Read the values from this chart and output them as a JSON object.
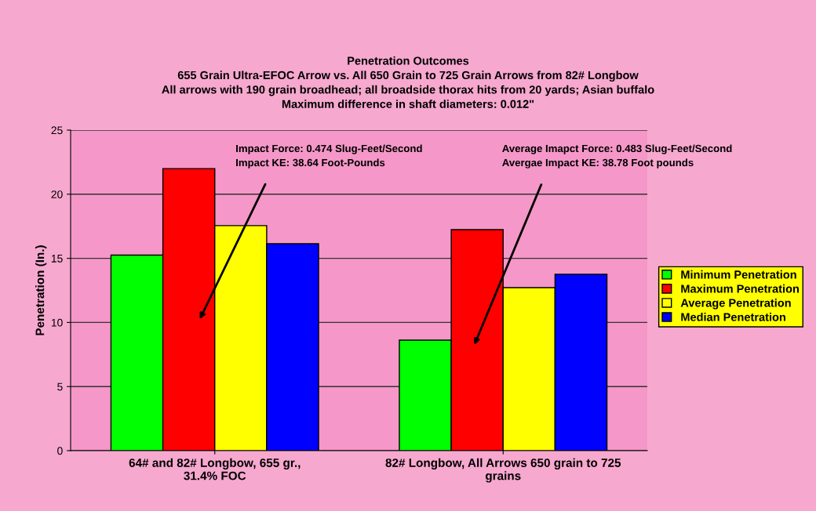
{
  "chart_data": {
    "type": "bar",
    "title": "Penetration Outcomes\n655 Grain Ultra-EFOC Arrow vs. All 650 Grain to 725 Grain Arrows from 82# Longbow\nAll arrows with 190 grain broadhead; all broadside thorax hits from 20 yards; Asian buffalo\nMaximum difference in shaft diameters: 0.012\"",
    "ylabel": "Penetration (In.)",
    "categories": [
      "64# and 82# Longbow, 655 gr.,\n31.4% FOC",
      "82# Longbow, All Arrows 650 grain to 725\ngrains"
    ],
    "series": [
      {
        "name": "Minimum Penetration",
        "color": "#00ff00",
        "values": [
          15.25,
          8.62
        ]
      },
      {
        "name": "Maximum Penetration",
        "color": "#ff0000",
        "values": [
          22.0,
          17.24
        ]
      },
      {
        "name": "Average Penetration",
        "color": "#ffff00",
        "values": [
          17.55,
          12.71
        ]
      },
      {
        "name": "Median Penetration",
        "color": "#0000ff",
        "values": [
          16.14,
          13.75
        ]
      }
    ],
    "ylim": [
      0,
      25
    ],
    "yticks": [
      0,
      5,
      10,
      15,
      20,
      25
    ],
    "grid": "y",
    "legend": "right",
    "annotations": [
      "Impact Force: 0.474 Slug-Feet/Second\nImpact KE: 38.64 Foot-Pounds",
      "Average Imapct Force: 0.483 Slug-Feet/Second\nAvergae Impact KE: 38.78 Foot pounds"
    ]
  }
}
